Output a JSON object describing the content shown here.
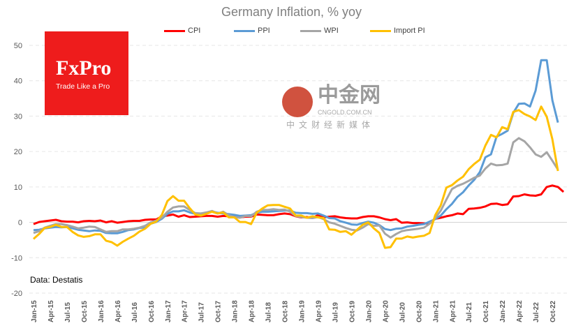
{
  "chart_data": {
    "type": "line",
    "title": "Germany Inflation, % yoy",
    "ylim": [
      -20,
      50
    ],
    "yticks": [
      50,
      40,
      30,
      20,
      10,
      0,
      -10,
      -20
    ],
    "grid": true,
    "legend": "top",
    "x_start": "Jan-15",
    "x_tick_labels": [
      "Jan-15",
      "Apr-15",
      "Jul-15",
      "Oct-15",
      "Jan-16",
      "Apr-16",
      "Jul-16",
      "Oct-16",
      "Jan-17",
      "Apr-17",
      "Jul-17",
      "Oct-17",
      "Jan-18",
      "Apr-18",
      "Jul-18",
      "Oct-18",
      "Jan-19",
      "Apr-19",
      "Jul-19",
      "Oct-19",
      "Jan-20",
      "Apr-20",
      "Jul-20",
      "Oct-20",
      "Jan-21",
      "Apr-21",
      "Jul-21",
      "Oct-21",
      "Jan-22",
      "Apr-22",
      "Jul-22",
      "Oct-22"
    ],
    "series": [
      {
        "name": "CPI",
        "color": "#ff0000",
        "values": [
          -0.5,
          0.1,
          0.3,
          0.5,
          0.7,
          0.3,
          0.2,
          0.2,
          0,
          0.3,
          0.4,
          0.3,
          0.5,
          0,
          0.3,
          -0.1,
          0.1,
          0.3,
          0.4,
          0.4,
          0.7,
          0.8,
          0.8,
          1.7,
          1.9,
          2.2,
          1.6,
          2.0,
          1.5,
          1.6,
          1.7,
          1.8,
          1.8,
          1.6,
          1.8,
          1.7,
          1.6,
          1.4,
          1.6,
          1.6,
          2.2,
          2.1,
          2.0,
          2.0,
          2.3,
          2.5,
          2.3,
          1.7,
          1.4,
          1.5,
          1.3,
          2.0,
          1.4,
          1.6,
          1.7,
          1.4,
          1.2,
          1.1,
          1.1,
          1.5,
          1.7,
          1.7,
          1.4,
          0.9,
          0.6,
          0.9,
          -0.1,
          0,
          -0.2,
          -0.2,
          -0.3,
          -0.3,
          1.0,
          1.3,
          1.7,
          2.0,
          2.5,
          2.3,
          3.8,
          3.9,
          4.1,
          4.5,
          5.2,
          5.3,
          4.9,
          5.1,
          7.3,
          7.4,
          7.9,
          7.6,
          7.5,
          7.9,
          10.0,
          10.4,
          10.0,
          8.6
        ]
      },
      {
        "name": "PPI",
        "color": "#5b9bd5",
        "values": [
          -2.2,
          -2.1,
          -1.7,
          -1.5,
          -1.3,
          -1.4,
          -1.3,
          -1.7,
          -2.1,
          -2.3,
          -2.5,
          -2.3,
          -2.4,
          -3.0,
          -3.1,
          -3.1,
          -2.7,
          -2.2,
          -2.0,
          -1.6,
          -1.4,
          -0.4,
          0.1,
          1.0,
          2.4,
          3.1,
          3.1,
          3.4,
          2.8,
          2.4,
          2.3,
          2.6,
          3.1,
          2.7,
          2.5,
          2.3,
          2.1,
          1.8,
          1.9,
          2.0,
          2.7,
          3.0,
          3.0,
          3.1,
          3.2,
          3.3,
          3.3,
          2.7,
          2.6,
          2.6,
          2.4,
          2.5,
          1.9,
          1.2,
          1.1,
          0.3,
          -0.1,
          -0.6,
          -0.7,
          -0.2,
          0.2,
          -0.1,
          -0.8,
          -1.9,
          -2.2,
          -1.8,
          -1.7,
          -1.2,
          -1.0,
          -0.7,
          -0.5,
          0.2,
          0.9,
          1.9,
          3.7,
          5.2,
          7.2,
          8.5,
          10.4,
          12.0,
          14.2,
          18.4,
          19.2,
          24.2,
          25.0,
          25.9,
          30.9,
          33.5,
          33.6,
          32.7,
          37.2,
          45.8,
          45.8,
          34.5,
          28.2
        ]
      },
      {
        "name": "WPI",
        "color": "#a5a5a5",
        "values": [
          -3.0,
          -2.5,
          -1.5,
          -1.0,
          -0.5,
          -0.5,
          -0.8,
          -1.2,
          -1.7,
          -1.5,
          -1.2,
          -1.3,
          -2.0,
          -2.7,
          -2.5,
          -2.5,
          -2.0,
          -2.0,
          -1.8,
          -1.5,
          -1.0,
          0,
          0.5,
          1.3,
          3.0,
          4.2,
          4.5,
          4.5,
          3.5,
          2.6,
          2.5,
          2.8,
          3.2,
          2.5,
          3.0,
          2.0,
          1.5,
          1.3,
          1.8,
          1.7,
          3.0,
          3.5,
          3.5,
          3.7,
          3.5,
          3.6,
          3.0,
          1.8,
          1.5,
          1.3,
          1.2,
          1.5,
          0.9,
          0,
          -0.4,
          -1.0,
          -1.6,
          -2.1,
          -2.3,
          -1.5,
          -0.5,
          -1.0,
          -0.9,
          -3.2,
          -4.3,
          -3.3,
          -2.5,
          -2.2,
          -2.0,
          -1.8,
          -1.5,
          -0.4,
          1.2,
          3.3,
          6.4,
          9.4,
          10.3,
          10.9,
          11.7,
          12.6,
          13.2,
          15.2,
          16.6,
          16.1,
          16.2,
          16.6,
          22.6,
          23.8,
          22.9,
          21.2,
          19.2,
          18.5,
          19.8,
          17.4,
          14.9
        ]
      },
      {
        "name": "Import PI",
        "color": "#ffc000",
        "values": [
          -4.7,
          -3.3,
          -1.6,
          -1.3,
          -0.7,
          -1.3,
          -1.3,
          -2.7,
          -3.7,
          -4.1,
          -3.9,
          -3.4,
          -3.4,
          -5.2,
          -5.6,
          -6.6,
          -5.5,
          -4.6,
          -3.8,
          -2.6,
          -1.8,
          -0.4,
          0.2,
          2.1,
          6.0,
          7.4,
          6.1,
          6.1,
          4.0,
          2.2,
          1.9,
          2.4,
          3.0,
          2.5,
          2.8,
          1.4,
          1.4,
          0.1,
          0.1,
          -0.5,
          2.7,
          3.9,
          4.8,
          4.9,
          4.9,
          4.4,
          3.9,
          1.9,
          1.9,
          1.3,
          1.7,
          1.4,
          1.2,
          -2.0,
          -2.1,
          -2.7,
          -2.5,
          -3.5,
          -2.1,
          -0.7,
          0,
          -1.7,
          -3.0,
          -7.2,
          -7.0,
          -4.6,
          -4.6,
          -4.0,
          -4.3,
          -4.0,
          -3.8,
          -3.0,
          2.0,
          4.8,
          9.8,
          10.5,
          11.8,
          12.9,
          15.0,
          16.5,
          17.7,
          21.7,
          24.7,
          24.0,
          26.9,
          26.3,
          31.2,
          31.7,
          30.6,
          29.9,
          28.9,
          32.7,
          29.8,
          23.5,
          14.5
        ]
      }
    ],
    "annotations": {
      "source": "Data: Destatis"
    }
  },
  "logo": {
    "brand": "FxPro",
    "tagline": "Trade Like a Pro"
  },
  "watermark": {
    "name": "中金网",
    "url": "CNGOLD.COM.CN",
    "sub": "中文财经新媒体"
  }
}
